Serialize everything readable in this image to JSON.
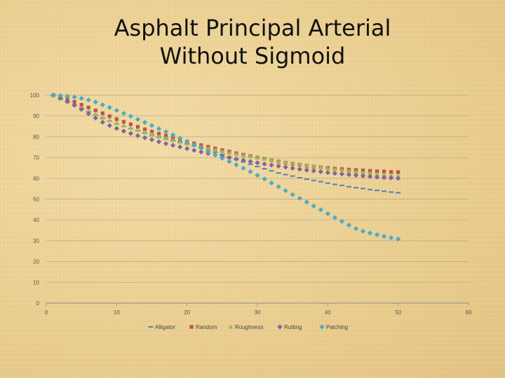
{
  "slide": {
    "title_line1": "Asphalt Principal Arterial",
    "title_line2": "Without Sigmoid"
  },
  "chart_data": {
    "type": "scatter",
    "title": "Asphalt Principal Arterial Without Sigmoid",
    "xlabel": "",
    "ylabel": "",
    "xlim": [
      0,
      60
    ],
    "ylim": [
      0,
      100
    ],
    "x_ticks": [
      0,
      10,
      20,
      30,
      40,
      50,
      60
    ],
    "y_ticks": [
      0,
      10,
      20,
      30,
      40,
      50,
      60,
      70,
      80,
      90,
      100
    ],
    "grid": "horizontal",
    "legend_position": "bottom",
    "series": [
      {
        "name": "Alligator",
        "marker": "dash",
        "color": "#4f81bd",
        "x": [
          1,
          2,
          3,
          4,
          5,
          6,
          7,
          8,
          9,
          10,
          11,
          12,
          13,
          14,
          15,
          16,
          17,
          18,
          19,
          20,
          21,
          22,
          23,
          24,
          25,
          26,
          27,
          28,
          29,
          30,
          31,
          32,
          33,
          34,
          35,
          36,
          37,
          38,
          39,
          40,
          41,
          42,
          43,
          44,
          45,
          46,
          47,
          48,
          49,
          50
        ],
        "y": [
          100,
          98.3,
          96.8,
          95.2,
          93.7,
          92.1,
          90.5,
          89,
          87.5,
          86.1,
          84.9,
          83.9,
          82.9,
          81.9,
          80.9,
          79.9,
          79,
          78.2,
          77.4,
          76.6,
          75.7,
          74.8,
          73.7,
          72.6,
          71.5,
          70.3,
          69.1,
          67.9,
          66.8,
          65.7,
          64.6,
          63.6,
          62.6,
          61.8,
          61.1,
          60.3,
          59.6,
          59,
          58.4,
          57.7,
          57.1,
          56.6,
          56,
          55.5,
          55.1,
          54.6,
          54.2,
          53.8,
          53.4,
          53.1
        ]
      },
      {
        "name": "Random",
        "marker": "square",
        "color": "#c0504d",
        "x": [
          1,
          2,
          3,
          4,
          5,
          6,
          7,
          8,
          9,
          10,
          11,
          12,
          13,
          14,
          15,
          16,
          17,
          18,
          19,
          20,
          21,
          22,
          23,
          24,
          25,
          26,
          27,
          28,
          29,
          30,
          31,
          32,
          33,
          34,
          35,
          36,
          37,
          38,
          39,
          40,
          41,
          42,
          43,
          44,
          45,
          46,
          47,
          48,
          49,
          50
        ],
        "y": [
          100,
          99.1,
          98,
          96.8,
          95.4,
          94.1,
          92.7,
          91.3,
          89.9,
          88.5,
          87.2,
          86,
          84.8,
          83.6,
          82.5,
          81.5,
          80.5,
          79.5,
          78.6,
          77.7,
          76.8,
          76,
          75.2,
          74.4,
          73.6,
          72.9,
          72.1,
          71.4,
          70.7,
          70,
          69.4,
          68.7,
          68.1,
          67.5,
          67,
          66.5,
          66,
          65.6,
          65.3,
          65,
          64.7,
          64.5,
          64.2,
          64,
          63.8,
          63.6,
          63.4,
          63.3,
          63.1,
          63
        ]
      },
      {
        "name": "Roughness",
        "marker": "triangle",
        "color": "#9bbb59",
        "x": [
          1,
          2,
          3,
          4,
          5,
          6,
          7,
          8,
          9,
          10,
          11,
          12,
          13,
          14,
          15,
          16,
          17,
          18,
          19,
          20,
          21,
          22,
          23,
          24,
          25,
          26,
          27,
          28,
          29,
          30,
          31,
          32,
          33,
          34,
          35,
          36,
          37,
          38,
          39,
          40,
          41,
          42,
          43,
          44,
          45,
          46,
          47,
          48,
          49,
          50
        ],
        "y": [
          100,
          98.4,
          96.9,
          95.3,
          93.8,
          92.2,
          90.8,
          89.2,
          87.9,
          86.6,
          85.4,
          84.3,
          83.2,
          82.1,
          81.1,
          80.1,
          79.2,
          78.3,
          77.5,
          76.7,
          75.9,
          75.1,
          74.4,
          73.7,
          73,
          72.3,
          71.7,
          71.1,
          70.5,
          69.9,
          69.4,
          68.9,
          68.3,
          67.8,
          67.3,
          66.8,
          66.3,
          65.8,
          65.3,
          64.8,
          64.4,
          64,
          63.6,
          63.2,
          62.8,
          62.4,
          62.1,
          61.7,
          61.4,
          61
        ]
      },
      {
        "name": "Rutting",
        "marker": "diamond",
        "color": "#8064a2",
        "x": [
          1,
          2,
          3,
          4,
          5,
          6,
          7,
          8,
          9,
          10,
          11,
          12,
          13,
          14,
          15,
          16,
          17,
          18,
          19,
          20,
          21,
          22,
          23,
          24,
          25,
          26,
          27,
          28,
          29,
          30,
          31,
          32,
          33,
          34,
          35,
          36,
          37,
          38,
          39,
          40,
          41,
          42,
          43,
          44,
          45,
          46,
          47,
          48,
          49,
          50
        ],
        "y": [
          100,
          98.6,
          97,
          95.2,
          93.2,
          91.1,
          89,
          87,
          85.4,
          84,
          82.7,
          81.6,
          80.5,
          79.5,
          78.6,
          77.6,
          76.7,
          75.9,
          75.1,
          74.3,
          73.5,
          72.7,
          72,
          71.3,
          70.6,
          69.9,
          69.3,
          68.7,
          68.1,
          67.5,
          66.9,
          66.4,
          65.9,
          65.4,
          64.9,
          64.4,
          64,
          63.6,
          63.2,
          62.8,
          62.4,
          62.1,
          61.8,
          61.5,
          61.2,
          60.9,
          60.6,
          60.4,
          60.2,
          60
        ]
      },
      {
        "name": "Patching",
        "marker": "diamond",
        "color": "#4bacc6",
        "x": [
          1,
          2,
          3,
          4,
          5,
          6,
          7,
          8,
          9,
          10,
          11,
          12,
          13,
          14,
          15,
          16,
          17,
          18,
          19,
          20,
          21,
          22,
          23,
          24,
          25,
          26,
          27,
          28,
          29,
          30,
          31,
          32,
          33,
          34,
          35,
          36,
          37,
          38,
          39,
          40,
          41,
          42,
          43,
          44,
          45,
          46,
          47,
          48,
          49,
          50
        ],
        "y": [
          100,
          99.8,
          99.5,
          99.1,
          98.5,
          97.7,
          96.7,
          95.4,
          94.1,
          92.7,
          91.3,
          89.9,
          88.4,
          86.9,
          85.4,
          83.9,
          82.4,
          80.9,
          79.3,
          77.7,
          76.1,
          74.5,
          72.9,
          71.3,
          69.7,
          68.1,
          66.5,
          64.9,
          63.2,
          61.5,
          59.7,
          57.8,
          56,
          54.1,
          52.2,
          50.4,
          48.6,
          46.7,
          44.9,
          43,
          41.1,
          39.3,
          37.5,
          35.8,
          34.6,
          33.7,
          32.9,
          32.1,
          31.4,
          30.8
        ]
      }
    ]
  }
}
